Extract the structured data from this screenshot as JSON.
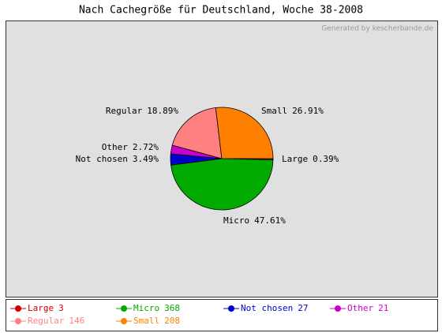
{
  "chart_data": {
    "type": "pie",
    "title": "Nach Cachegröße für Deutschland, Woche 38-2008",
    "credit": "Generated by kescherbande.de",
    "categories": [
      "Large",
      "Micro",
      "Not chosen",
      "Other",
      "Regular",
      "Small"
    ],
    "values": [
      0.39,
      47.61,
      3.49,
      2.72,
      18.89,
      26.91
    ],
    "value_labels": [
      "0.39%",
      "47.61%",
      "3.49%",
      "2.72%",
      "18.89%",
      "26.91%"
    ],
    "counts": [
      3,
      368,
      27,
      21,
      146,
      208
    ],
    "colors": [
      "#cc0000",
      "#00aa00",
      "#0000cc",
      "#cc00cc",
      "#ff8080",
      "#ff8000"
    ]
  }
}
